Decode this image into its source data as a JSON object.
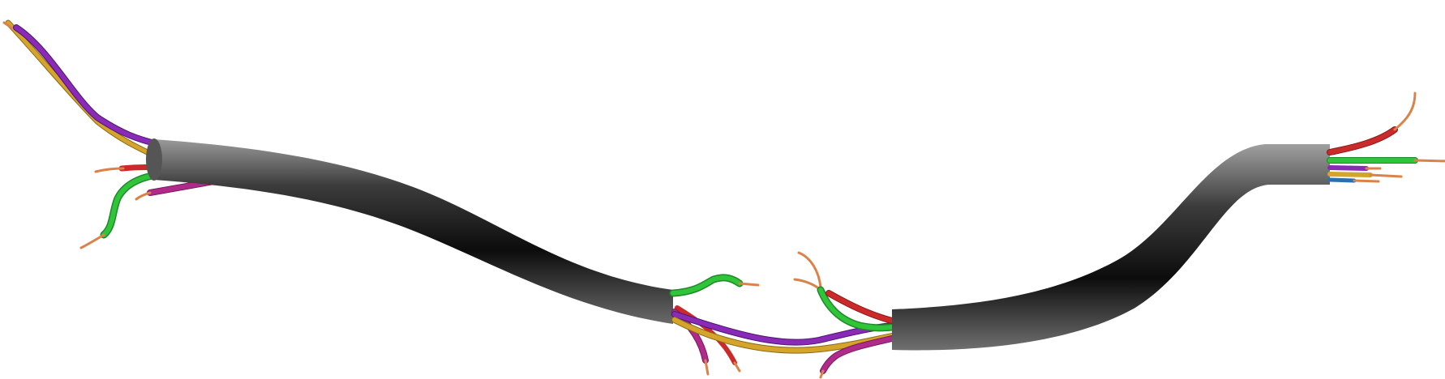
{
  "scene": {
    "background": "#ffffff",
    "sheath_color": "#3a3a3a",
    "wire_colors": {
      "purple": "#8a2bb8",
      "yellow": "#d4a52a",
      "red": "#cc2a2a",
      "green": "#2fc43a",
      "magenta": "#b02a8a",
      "blue": "#2a6fb0",
      "copper": "#d9824a"
    }
  }
}
